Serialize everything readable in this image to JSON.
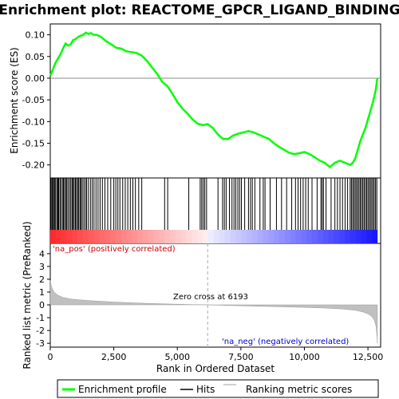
{
  "chart_data": {
    "type": "line",
    "title": "Enrichment plot: REACTOME_GPCR_LIGAND_BINDING",
    "xlabel": "Rank in Ordered Dataset",
    "ylabel_top": "Enrichment score (ES)",
    "ylabel_bottom": "Ranked list metric (PreRanked)",
    "xlim": [
      0,
      13000
    ],
    "x_ticks": [
      0,
      2500,
      5000,
      7500,
      10000,
      12500
    ],
    "x_tick_labels": [
      "0",
      "2,500",
      "5,000",
      "7,500",
      "10,000",
      "12,500"
    ],
    "es_ylim": [
      -0.23,
      0.125
    ],
    "es_ticks": [
      0.1,
      0.05,
      0.0,
      -0.05,
      -0.1,
      -0.15,
      -0.2
    ],
    "es_tick_labels": [
      "0.10",
      "0.05",
      "0.00",
      "-0.05",
      "-0.10",
      "-0.15",
      "-0.20"
    ],
    "metric_ylim": [
      -3.3,
      4.8
    ],
    "metric_ticks": [
      4,
      3,
      2,
      1,
      0,
      -1,
      -2,
      -3
    ],
    "metric_tick_labels": [
      "4",
      "3",
      "2",
      "1",
      "0",
      "-1",
      "-2",
      "-3"
    ],
    "enrichment_profile": {
      "name": "Enrichment profile",
      "x": [
        0,
        100,
        200,
        300,
        400,
        500,
        600,
        700,
        800,
        900,
        1000,
        1100,
        1200,
        1300,
        1400,
        1500,
        1600,
        1700,
        1800,
        1900,
        2000,
        2200,
        2400,
        2600,
        2800,
        3000,
        3200,
        3400,
        3600,
        3800,
        4000,
        4200,
        4400,
        4600,
        4800,
        5000,
        5200,
        5400,
        5600,
        5800,
        6000,
        6200,
        6400,
        6600,
        6800,
        7000,
        7200,
        7400,
        7600,
        7800,
        8000,
        8200,
        8400,
        8600,
        8800,
        9000,
        9200,
        9400,
        9600,
        9800,
        10000,
        10200,
        10400,
        10600,
        10800,
        11000,
        11200,
        11400,
        11600,
        11800,
        11900,
        12000,
        12100,
        12200,
        12300,
        12400,
        12500,
        12600,
        12700,
        12800,
        12870
      ],
      "y": [
        0.005,
        0.02,
        0.035,
        0.045,
        0.055,
        0.068,
        0.08,
        0.075,
        0.078,
        0.088,
        0.09,
        0.095,
        0.098,
        0.1,
        0.105,
        0.102,
        0.104,
        0.1,
        0.1,
        0.098,
        0.095,
        0.085,
        0.078,
        0.07,
        0.068,
        0.062,
        0.06,
        0.058,
        0.052,
        0.04,
        0.025,
        0.01,
        -0.008,
        -0.018,
        -0.035,
        -0.055,
        -0.07,
        -0.082,
        -0.095,
        -0.105,
        -0.108,
        -0.106,
        -0.115,
        -0.13,
        -0.14,
        -0.14,
        -0.132,
        -0.128,
        -0.125,
        -0.122,
        -0.125,
        -0.13,
        -0.135,
        -0.14,
        -0.15,
        -0.158,
        -0.165,
        -0.172,
        -0.175,
        -0.173,
        -0.17,
        -0.175,
        -0.182,
        -0.19,
        -0.195,
        -0.205,
        -0.195,
        -0.19,
        -0.195,
        -0.2,
        -0.195,
        -0.185,
        -0.165,
        -0.145,
        -0.13,
        -0.115,
        -0.095,
        -0.075,
        -0.055,
        -0.03,
        0.0
      ]
    },
    "hits": [
      20,
      60,
      95,
      130,
      170,
      210,
      260,
      300,
      330,
      380,
      420,
      480,
      520,
      560,
      610,
      650,
      700,
      760,
      810,
      860,
      900,
      940,
      990,
      1030,
      1080,
      1120,
      1170,
      1210,
      1260,
      1320,
      1380,
      1430,
      1500,
      1580,
      1650,
      1720,
      1800,
      1880,
      1960,
      2050,
      2150,
      2260,
      2380,
      2500,
      2580,
      2660,
      2740,
      2850,
      2950,
      3050,
      3150,
      3250,
      3350,
      3480,
      3600,
      4500,
      4620,
      5450,
      5900,
      5960,
      6020,
      6080,
      6150,
      6600,
      6780,
      6850,
      6920,
      7050,
      7150,
      7230,
      7300,
      7380,
      7450,
      7520,
      7650,
      7800,
      7880,
      7950,
      8050,
      8250,
      8380,
      8450,
      8650,
      8900,
      9100,
      9300,
      9500,
      9650,
      9750,
      9850,
      9950,
      10050,
      10150,
      10300,
      10500,
      10650,
      10700,
      10750,
      10850,
      11050,
      11200,
      11300,
      11400,
      11500,
      11600,
      11700,
      11800,
      11850,
      11900,
      11950,
      12000,
      12050,
      12100,
      12150,
      12200,
      12250,
      12300,
      12350,
      12400,
      12450,
      12500,
      12550,
      12600,
      12650,
      12700,
      12750,
      12800,
      12850
    ],
    "metric_points": [
      [
        0,
        1.9
      ],
      [
        50,
        1.4
      ],
      [
        150,
        1.0
      ],
      [
        300,
        0.75
      ],
      [
        500,
        0.58
      ],
      [
        800,
        0.46
      ],
      [
        1200,
        0.38
      ],
      [
        1800,
        0.3
      ],
      [
        2500,
        0.22
      ],
      [
        3500,
        0.14
      ],
      [
        4500,
        0.08
      ],
      [
        5500,
        0.03
      ],
      [
        6193,
        0.0
      ],
      [
        7000,
        -0.05
      ],
      [
        8000,
        -0.1
      ],
      [
        9000,
        -0.15
      ],
      [
        10000,
        -0.2
      ],
      [
        10800,
        -0.25
      ],
      [
        11500,
        -0.32
      ],
      [
        12000,
        -0.42
      ],
      [
        12300,
        -0.55
      ],
      [
        12500,
        -0.7
      ],
      [
        12650,
        -0.9
      ],
      [
        12750,
        -1.2
      ],
      [
        12820,
        -1.7
      ],
      [
        12860,
        -2.5
      ],
      [
        12870,
        -3.0
      ]
    ],
    "zero_cross_label": "Zero cross at 6193",
    "zero_cross_x": 6193,
    "pos_label": "'na_pos' (positively correlated)",
    "neg_label": "'na_neg' (negatively correlated)",
    "legend": {
      "placement": "bottom",
      "entries": [
        {
          "label": "Enrichment profile",
          "color": "#00ff00"
        },
        {
          "label": "Hits",
          "color": "#000000"
        },
        {
          "label": "Ranking metric scores",
          "color": "#c0c0c0"
        }
      ]
    },
    "colors": {
      "profile": "#00ff00",
      "hits": "#000000",
      "metric_fill": "#c0c0c0",
      "pos": "#ff0000",
      "neg": "#0000ff",
      "zero_line": "#aaaaaa"
    }
  }
}
